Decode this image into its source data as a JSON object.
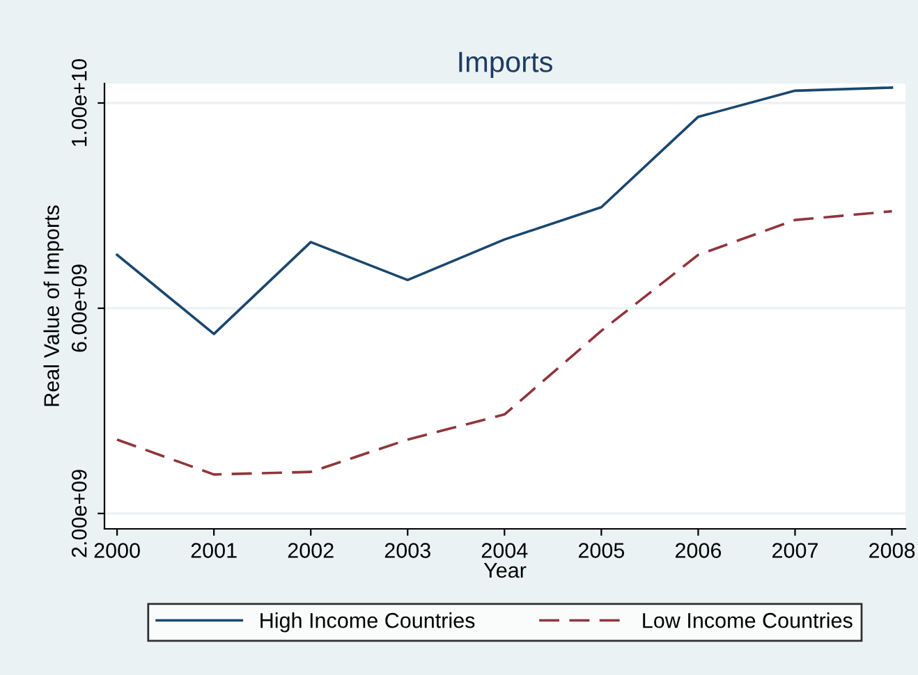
{
  "chart_data": {
    "type": "line",
    "title": "Imports",
    "xlabel": "Year",
    "ylabel": "Real Value of Imports",
    "x": [
      2000,
      2001,
      2002,
      2003,
      2004,
      2005,
      2006,
      2007,
      2008
    ],
    "series": [
      {
        "name": "High Income Countries",
        "color": "#1a476f",
        "line_style": "solid",
        "values": [
          7040000000,
          5500000000,
          7290000000,
          6550000000,
          7340000000,
          7970000000,
          9730000000,
          10240000000,
          10300000000
        ]
      },
      {
        "name": "Low Income Countries",
        "color": "#90353b",
        "line_style": "dashed",
        "values": [
          3440000000,
          2760000000,
          2810000000,
          3440000000,
          3930000000,
          5560000000,
          7040000000,
          7720000000,
          7890000000
        ]
      }
    ],
    "xlim": [
      1999.87,
      2008.14
    ],
    "xticks": [
      2000,
      2001,
      2002,
      2003,
      2004,
      2005,
      2006,
      2007,
      2008
    ],
    "ylim": [
      1700000000,
      10380000000
    ],
    "yticks": [
      {
        "value": 2000000000,
        "label": "2.00e+09"
      },
      {
        "value": 6000000000,
        "label": "6.00e+09"
      },
      {
        "value": 10000000000,
        "label": "1.00e+10"
      }
    ],
    "grid": "y",
    "legend": "bottom",
    "marker": "none"
  }
}
